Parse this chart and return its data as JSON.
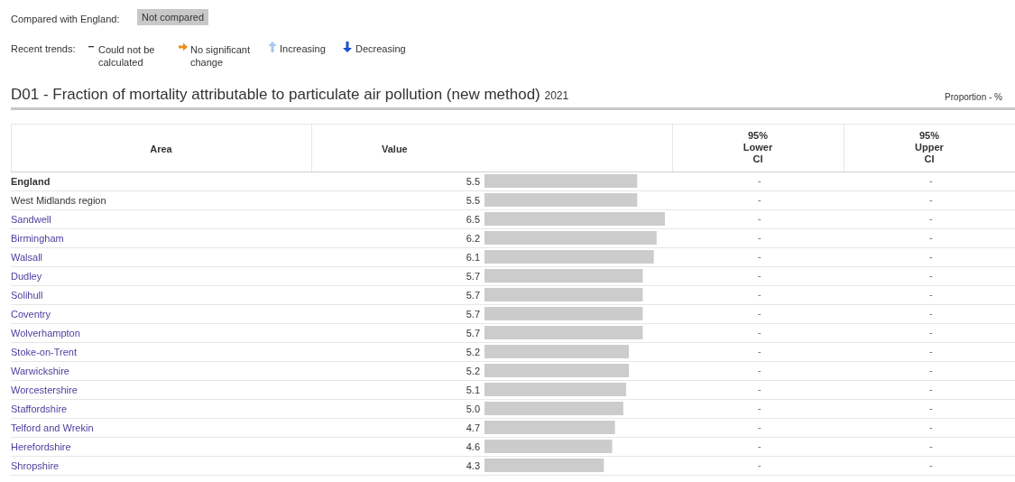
{
  "chart_data": {
    "type": "bar",
    "orientation": "horizontal",
    "title": "D01 - Fraction of mortality attributable to particulate air pollution (new method)",
    "subtitle": "2021",
    "categories": [
      "England",
      "West Midlands region",
      "Sandwell",
      "Birmingham",
      "Walsall",
      "Dudley",
      "Solihull",
      "Coventry",
      "Wolverhampton",
      "Stoke-on-Trent",
      "Warwickshire",
      "Worcestershire",
      "Staffordshire",
      "Telford and Wrekin",
      "Herefordshire",
      "Shropshire"
    ],
    "values": [
      5.5,
      5.5,
      6.5,
      6.2,
      6.1,
      5.7,
      5.7,
      5.7,
      5.7,
      5.2,
      5.2,
      5.1,
      5.0,
      4.7,
      4.6,
      4.3
    ],
    "value_labels": [
      "5.5",
      "5.5",
      "6.5",
      "6.2",
      "6.1",
      "5.7",
      "5.7",
      "5.7",
      "5.7",
      "5.2",
      "5.2",
      "5.1",
      "5.0",
      "4.7",
      "4.6",
      "4.3"
    ],
    "color": "#cccccc",
    "annotations": [
      "Compared with England:",
      "Not compared",
      "Recent trends:",
      "Could not be calculated",
      "No significant change",
      "Increasing",
      "Decreasing",
      "Proportion - %",
      "Area",
      "Value",
      "95% Lower CI",
      "95% Upper CI",
      "-"
    ]
  }
}
